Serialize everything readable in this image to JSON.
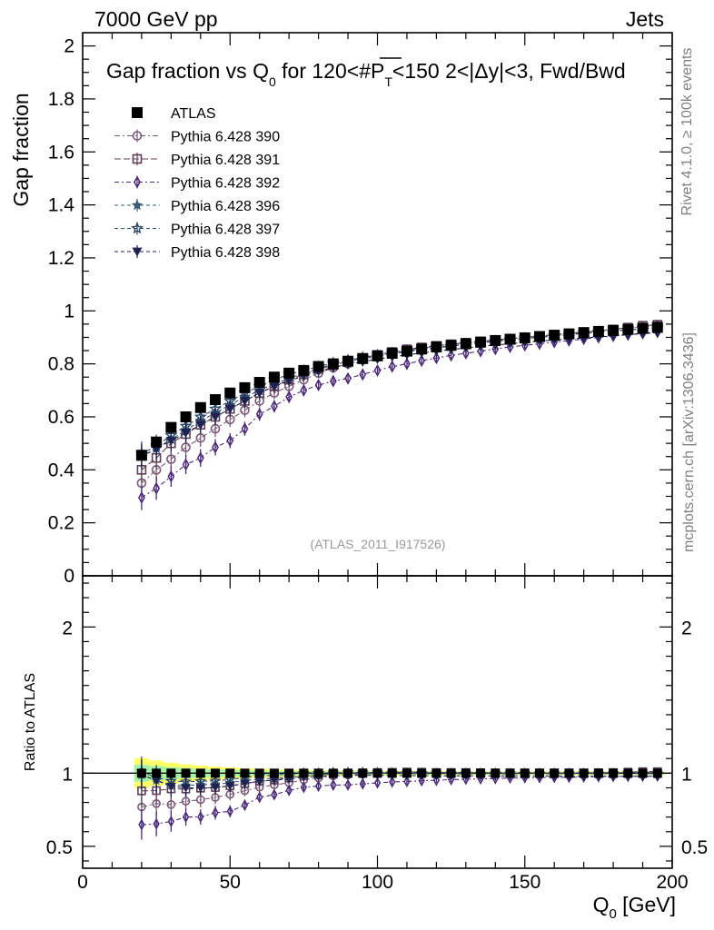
{
  "header": {
    "left": "7000 GeV pp",
    "right": "Jets"
  },
  "side_labels": {
    "rivet": "Rivet 4.1.0, ≥ 100k events",
    "mcplots": "mcplots.cern.ch [arXiv:1306.3436]"
  },
  "watermark": "(ATLAS_2011_I917526)",
  "chart_data": [
    {
      "type": "scatter",
      "panel": "main",
      "title_parts": {
        "t1": "Gap fraction vs Q",
        "t1sub": "0",
        "t2": " for 120<#",
        "t3": "P",
        "t3sub": "T",
        "t4": "<150  2<|Δy|<3, Fwd/Bwd"
      },
      "ylabel": "Gap fraction",
      "xlabel_main": "Q",
      "xlabel_sub": "0",
      "xlabel_unit": " [GeV]",
      "xlim": [
        0,
        200
      ],
      "ylim": [
        0,
        2.05
      ],
      "xticks": [
        "0",
        "50",
        "100",
        "150",
        "200"
      ],
      "yticks": [
        "0",
        "0.2",
        "0.4",
        "0.6",
        "0.8",
        "1",
        "1.2",
        "1.4",
        "1.6",
        "1.8",
        "2"
      ],
      "x": [
        20,
        25,
        30,
        35,
        40,
        45,
        50,
        55,
        60,
        65,
        70,
        75,
        80,
        85,
        90,
        95,
        100,
        105,
        110,
        115,
        120,
        125,
        130,
        135,
        140,
        145,
        150,
        155,
        160,
        165,
        170,
        175,
        180,
        185,
        190,
        195
      ],
      "series": [
        {
          "name": "ATLAS",
          "marker": "square-filled",
          "color": "#000000",
          "values": [
            0.455,
            0.505,
            0.56,
            0.6,
            0.635,
            0.665,
            0.69,
            0.71,
            0.73,
            0.75,
            0.765,
            0.775,
            0.79,
            0.8,
            0.81,
            0.82,
            0.83,
            0.84,
            0.848,
            0.856,
            0.864,
            0.87,
            0.876,
            0.882,
            0.888,
            0.893,
            0.898,
            0.903,
            0.908,
            0.913,
            0.918,
            0.922,
            0.926,
            0.93,
            0.934,
            0.938
          ]
        },
        {
          "name": "Pythia 6.428 390",
          "marker": "circle-open",
          "color": "#7a5a78",
          "values": [
            0.35,
            0.4,
            0.44,
            0.485,
            0.52,
            0.555,
            0.59,
            0.625,
            0.66,
            0.69,
            0.715,
            0.74,
            0.765,
            0.785,
            0.8,
            0.815,
            0.83,
            0.84,
            0.85,
            0.858,
            0.866,
            0.873,
            0.879,
            0.885,
            0.89,
            0.895,
            0.9,
            0.905,
            0.91,
            0.915,
            0.92,
            0.925,
            0.93,
            0.935,
            0.94,
            0.944
          ]
        },
        {
          "name": "Pythia 6.428 391",
          "marker": "square-open",
          "color": "#5e3f58",
          "values": [
            0.4,
            0.445,
            0.5,
            0.535,
            0.57,
            0.6,
            0.63,
            0.66,
            0.69,
            0.715,
            0.74,
            0.76,
            0.78,
            0.795,
            0.81,
            0.822,
            0.834,
            0.845,
            0.855,
            0.862,
            0.868,
            0.874,
            0.88,
            0.885,
            0.89,
            0.895,
            0.9,
            0.905,
            0.91,
            0.915,
            0.92,
            0.925,
            0.93,
            0.937,
            0.944,
            0.948
          ]
        },
        {
          "name": "Pythia 6.428 392",
          "marker": "diamond-open",
          "color": "#4a2a78",
          "values": [
            0.295,
            0.33,
            0.375,
            0.42,
            0.445,
            0.485,
            0.51,
            0.555,
            0.61,
            0.64,
            0.675,
            0.7,
            0.72,
            0.735,
            0.745,
            0.76,
            0.775,
            0.79,
            0.8,
            0.812,
            0.822,
            0.832,
            0.84,
            0.848,
            0.856,
            0.864,
            0.87,
            0.876,
            0.882,
            0.888,
            0.894,
            0.9,
            0.905,
            0.91,
            0.915,
            0.92
          ]
        },
        {
          "name": "Pythia 6.428 396",
          "marker": "star-filled",
          "color": "#3a5a78",
          "values": [
            0.45,
            0.48,
            0.515,
            0.55,
            0.585,
            0.615,
            0.645,
            0.675,
            0.7,
            0.725,
            0.745,
            0.765,
            0.782,
            0.798,
            0.81,
            0.82,
            0.83,
            0.838,
            0.846,
            0.853,
            0.86,
            0.867,
            0.873,
            0.879,
            0.885,
            0.89,
            0.895,
            0.9,
            0.905,
            0.91,
            0.915,
            0.92,
            0.924,
            0.928,
            0.932,
            0.935
          ]
        },
        {
          "name": "Pythia 6.428 397",
          "marker": "star-open",
          "color": "#2e4a68",
          "values": [
            0.46,
            0.49,
            0.53,
            0.565,
            0.6,
            0.63,
            0.66,
            0.69,
            0.715,
            0.74,
            0.76,
            0.775,
            0.79,
            0.803,
            0.814,
            0.824,
            0.833,
            0.841,
            0.849,
            0.856,
            0.862,
            0.868,
            0.874,
            0.88,
            0.886,
            0.891,
            0.896,
            0.901,
            0.906,
            0.911,
            0.916,
            0.92,
            0.924,
            0.928,
            0.932,
            0.936
          ]
        },
        {
          "name": "Pythia 6.428 398",
          "marker": "triangle-down-filled",
          "color": "#1c2350",
          "values": [
            0.45,
            0.48,
            0.51,
            0.54,
            0.57,
            0.6,
            0.63,
            0.66,
            0.69,
            0.715,
            0.735,
            0.755,
            0.772,
            0.786,
            0.798,
            0.808,
            0.818,
            0.826,
            0.834,
            0.841,
            0.848,
            0.854,
            0.86,
            0.866,
            0.871,
            0.876,
            0.881,
            0.886,
            0.89,
            0.894,
            0.898,
            0.902,
            0.906,
            0.91,
            0.914,
            0.918
          ]
        }
      ]
    },
    {
      "type": "scatter",
      "panel": "ratio",
      "ylabel": "Ratio to ATLAS",
      "xlim": [
        0,
        200
      ],
      "ylim": [
        0.35,
        2.35
      ],
      "yticks_left": [
        "0.5",
        "1",
        "2"
      ],
      "yticks_right": [
        "0.5",
        "1",
        "2"
      ],
      "band_color": "#ffff66",
      "band_color_inner": "#a6f2a6",
      "note": "Ratio values are computed as series / ATLAS for each bin"
    }
  ]
}
